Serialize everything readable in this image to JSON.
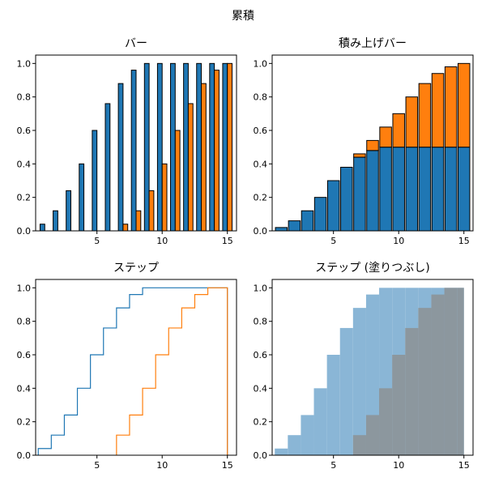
{
  "figure": {
    "title": "累積"
  },
  "colors": {
    "series_a": "#1f77b4",
    "series_b": "#ff7f0e",
    "fill_a": "#8ab6d6",
    "fill_overlap": "#8c979e"
  },
  "chart_data": [
    {
      "type": "bar",
      "title": "バー",
      "xlim": [
        0.3,
        15.7
      ],
      "ylim": [
        0,
        1.05
      ],
      "xticks": [
        5,
        10,
        15
      ],
      "yticks": [
        0.0,
        0.2,
        0.4,
        0.6,
        0.8,
        1.0
      ],
      "series": [
        {
          "x": [
            1,
            2,
            3,
            4,
            5,
            6,
            7,
            8,
            9,
            10,
            11,
            12,
            13,
            14,
            15
          ],
          "values": [
            0.04,
            0.12,
            0.24,
            0.4,
            0.6,
            0.76,
            0.88,
            0.96,
            1.0,
            1.0,
            1.0,
            1.0,
            1.0,
            1.0,
            1.0
          ]
        },
        {
          "x": [
            1,
            2,
            3,
            4,
            5,
            6,
            7,
            8,
            9,
            10,
            11,
            12,
            13,
            14,
            15
          ],
          "values": [
            0,
            0,
            0,
            0,
            0,
            0,
            0.04,
            0.12,
            0.24,
            0.4,
            0.6,
            0.76,
            0.88,
            0.96,
            1.0
          ]
        }
      ]
    },
    {
      "type": "bar",
      "stacked": true,
      "title": "積み上げバー",
      "xlim": [
        0.3,
        15.7
      ],
      "ylim": [
        0,
        1.05
      ],
      "xticks": [
        5,
        10,
        15
      ],
      "yticks": [
        0.0,
        0.2,
        0.4,
        0.6,
        0.8,
        1.0
      ],
      "series": [
        {
          "x": [
            1,
            2,
            3,
            4,
            5,
            6,
            7,
            8,
            9,
            10,
            11,
            12,
            13,
            14,
            15
          ],
          "values": [
            0.02,
            0.06,
            0.12,
            0.2,
            0.3,
            0.38,
            0.44,
            0.48,
            0.5,
            0.5,
            0.5,
            0.5,
            0.5,
            0.5,
            0.5
          ]
        },
        {
          "x": [
            1,
            2,
            3,
            4,
            5,
            6,
            7,
            8,
            9,
            10,
            11,
            12,
            13,
            14,
            15
          ],
          "values": [
            0,
            0,
            0,
            0,
            0,
            0,
            0.02,
            0.06,
            0.12,
            0.2,
            0.3,
            0.38,
            0.44,
            0.48,
            0.5
          ]
        }
      ]
    },
    {
      "type": "line",
      "step": true,
      "title": "ステップ",
      "xlim": [
        0.3,
        15.7
      ],
      "ylim": [
        0,
        1.05
      ],
      "xticks": [
        5,
        10,
        15
      ],
      "yticks": [
        0.0,
        0.2,
        0.4,
        0.6,
        0.8,
        1.0
      ],
      "series": [
        {
          "x": [
            1,
            2,
            3,
            4,
            5,
            6,
            7,
            8,
            9,
            10,
            11,
            12,
            13,
            14,
            15
          ],
          "values": [
            0.04,
            0.12,
            0.24,
            0.4,
            0.6,
            0.76,
            0.88,
            0.96,
            1.0,
            1.0,
            1.0,
            1.0,
            1.0,
            1.0,
            1.0
          ]
        },
        {
          "x": [
            6.5,
            7,
            8,
            9,
            10,
            11,
            12,
            13,
            14,
            15
          ],
          "values": [
            0.04,
            0.12,
            0.24,
            0.4,
            0.6,
            0.76,
            0.88,
            0.96,
            1.0,
            1.0
          ]
        }
      ]
    },
    {
      "type": "area",
      "step": true,
      "title": "ステップ (塗りつぶし)",
      "xlim": [
        0.3,
        15.7
      ],
      "ylim": [
        0,
        1.05
      ],
      "xticks": [
        5,
        10,
        15
      ],
      "yticks": [
        0.0,
        0.2,
        0.4,
        0.6,
        0.8,
        1.0
      ],
      "series": [
        {
          "x": [
            1,
            2,
            3,
            4,
            5,
            6,
            7,
            8,
            9,
            10,
            11,
            12,
            13,
            14,
            15
          ],
          "values": [
            0.04,
            0.12,
            0.24,
            0.4,
            0.6,
            0.76,
            0.88,
            0.96,
            1.0,
            1.0,
            1.0,
            1.0,
            1.0,
            1.0,
            1.0
          ]
        },
        {
          "x": [
            6.5,
            7,
            8,
            9,
            10,
            11,
            12,
            13,
            14,
            15
          ],
          "values": [
            0.04,
            0.12,
            0.24,
            0.4,
            0.6,
            0.76,
            0.88,
            0.96,
            1.0,
            1.0
          ]
        }
      ]
    }
  ]
}
